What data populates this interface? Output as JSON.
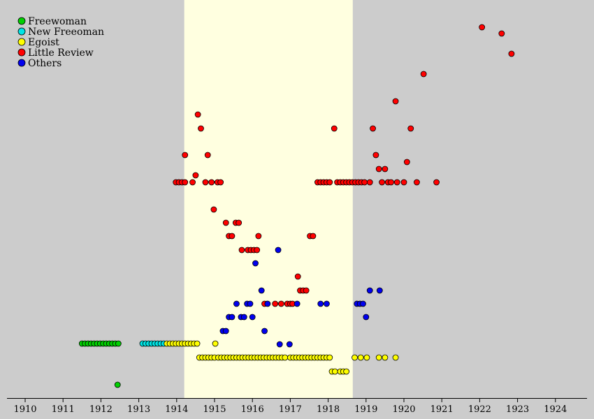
{
  "chart_data": {
    "type": "scatter",
    "title": "",
    "xlabel": "",
    "ylabel": "",
    "xlim": [
      1909.6,
      1925.0
    ],
    "xticks": [
      "1910",
      "1911",
      "1912",
      "1913",
      "1914",
      "1915",
      "1916",
      "1917",
      "1918",
      "1919",
      "1920",
      "1921",
      "1922",
      "1923",
      "1924"
    ],
    "highlight_range": [
      1914.2,
      1918.65
    ],
    "grid": false,
    "legend_placement": "top-left",
    "series": [
      {
        "name": "Freewoman",
        "color": "#00d000",
        "points": [
          [
            1911.5,
            492
          ],
          [
            1911.58,
            492
          ],
          [
            1911.66,
            492
          ],
          [
            1911.74,
            492
          ],
          [
            1911.82,
            492
          ],
          [
            1911.9,
            492
          ],
          [
            1911.98,
            492
          ],
          [
            1912.06,
            492
          ],
          [
            1912.14,
            492
          ],
          [
            1912.22,
            492
          ],
          [
            1912.3,
            492
          ],
          [
            1912.38,
            492
          ],
          [
            1912.46,
            492
          ],
          [
            1912.44,
            551
          ]
        ]
      },
      {
        "name": "New Freeoman",
        "color": "#00e5e5",
        "points": [
          [
            1913.1,
            492
          ],
          [
            1913.18,
            492
          ],
          [
            1913.26,
            492
          ],
          [
            1913.34,
            492
          ],
          [
            1913.42,
            492
          ],
          [
            1913.5,
            492
          ],
          [
            1913.58,
            492
          ],
          [
            1913.66,
            492
          ]
        ]
      },
      {
        "name": "Egoist",
        "color": "#ffff00",
        "points": [
          [
            1913.74,
            492
          ],
          [
            1913.82,
            492
          ],
          [
            1913.9,
            492
          ],
          [
            1913.98,
            492
          ],
          [
            1914.06,
            492
          ],
          [
            1914.14,
            492
          ],
          [
            1914.22,
            492
          ],
          [
            1914.3,
            492
          ],
          [
            1914.38,
            492
          ],
          [
            1914.46,
            492
          ],
          [
            1914.54,
            492
          ],
          [
            1915.02,
            492
          ],
          [
            1914.6,
            512
          ],
          [
            1914.68,
            512
          ],
          [
            1914.76,
            512
          ],
          [
            1914.84,
            512
          ],
          [
            1914.92,
            512
          ],
          [
            1915.0,
            512
          ],
          [
            1915.1,
            512
          ],
          [
            1915.18,
            512
          ],
          [
            1915.26,
            512
          ],
          [
            1915.34,
            512
          ],
          [
            1915.42,
            512
          ],
          [
            1915.5,
            512
          ],
          [
            1915.58,
            512
          ],
          [
            1915.66,
            512
          ],
          [
            1915.74,
            512
          ],
          [
            1915.82,
            512
          ],
          [
            1915.9,
            512
          ],
          [
            1915.98,
            512
          ],
          [
            1916.06,
            512
          ],
          [
            1916.14,
            512
          ],
          [
            1916.22,
            512
          ],
          [
            1916.3,
            512
          ],
          [
            1916.38,
            512
          ],
          [
            1916.46,
            512
          ],
          [
            1916.54,
            512
          ],
          [
            1916.62,
            512
          ],
          [
            1916.7,
            512
          ],
          [
            1916.78,
            512
          ],
          [
            1916.86,
            512
          ],
          [
            1917.0,
            512
          ],
          [
            1917.08,
            512
          ],
          [
            1917.16,
            512
          ],
          [
            1917.24,
            512
          ],
          [
            1917.32,
            512
          ],
          [
            1917.4,
            512
          ],
          [
            1917.48,
            512
          ],
          [
            1917.56,
            512
          ],
          [
            1917.64,
            512
          ],
          [
            1917.72,
            512
          ],
          [
            1917.8,
            512
          ],
          [
            1917.88,
            512
          ],
          [
            1917.96,
            512
          ],
          [
            1918.04,
            512
          ],
          [
            1918.7,
            512
          ],
          [
            1918.86,
            512
          ],
          [
            1919.02,
            512
          ],
          [
            1919.34,
            512
          ],
          [
            1919.5,
            512
          ],
          [
            1919.78,
            512
          ],
          [
            1918.1,
            532
          ],
          [
            1918.18,
            532
          ],
          [
            1918.32,
            532
          ],
          [
            1918.4,
            532
          ],
          [
            1918.48,
            532
          ]
        ]
      },
      {
        "name": "Little Review",
        "color": "#ff0000",
        "points": [
          [
            1922.06,
            39
          ],
          [
            1922.58,
            48
          ],
          [
            1922.84,
            77
          ],
          [
            1920.52,
            106
          ],
          [
            1919.78,
            145
          ],
          [
            1914.56,
            164
          ],
          [
            1914.64,
            184
          ],
          [
            1918.16,
            184
          ],
          [
            1919.18,
            184
          ],
          [
            1920.18,
            184
          ],
          [
            1914.22,
            222
          ],
          [
            1914.82,
            222
          ],
          [
            1919.26,
            222
          ],
          [
            1920.08,
            232
          ],
          [
            1919.34,
            242
          ],
          [
            1919.5,
            242
          ],
          [
            1914.5,
            251
          ],
          [
            1913.98,
            261
          ],
          [
            1914.06,
            261
          ],
          [
            1914.14,
            261
          ],
          [
            1914.22,
            261
          ],
          [
            1914.42,
            261
          ],
          [
            1914.76,
            261
          ],
          [
            1914.92,
            261
          ],
          [
            1915.08,
            261
          ],
          [
            1915.16,
            261
          ],
          [
            1917.72,
            261
          ],
          [
            1917.8,
            261
          ],
          [
            1917.88,
            261
          ],
          [
            1917.96,
            261
          ],
          [
            1918.04,
            261
          ],
          [
            1918.24,
            261
          ],
          [
            1918.32,
            261
          ],
          [
            1918.4,
            261
          ],
          [
            1918.48,
            261
          ],
          [
            1918.56,
            261
          ],
          [
            1918.64,
            261
          ],
          [
            1918.72,
            261
          ],
          [
            1918.8,
            261
          ],
          [
            1918.88,
            261
          ],
          [
            1918.96,
            261
          ],
          [
            1919.1,
            261
          ],
          [
            1919.42,
            261
          ],
          [
            1919.58,
            261
          ],
          [
            1919.66,
            261
          ],
          [
            1919.82,
            261
          ],
          [
            1920.0,
            261
          ],
          [
            1920.34,
            261
          ],
          [
            1920.86,
            261
          ],
          [
            1914.98,
            300
          ],
          [
            1915.3,
            319
          ],
          [
            1915.56,
            319
          ],
          [
            1915.64,
            319
          ],
          [
            1915.38,
            338
          ],
          [
            1915.46,
            338
          ],
          [
            1916.16,
            338
          ],
          [
            1917.52,
            338
          ],
          [
            1917.6,
            338
          ],
          [
            1915.72,
            358
          ],
          [
            1915.88,
            358
          ],
          [
            1915.96,
            358
          ],
          [
            1916.04,
            358
          ],
          [
            1916.12,
            358
          ],
          [
            1917.2,
            396
          ],
          [
            1917.26,
            416
          ],
          [
            1917.34,
            416
          ],
          [
            1917.42,
            416
          ],
          [
            1916.32,
            435
          ],
          [
            1916.6,
            435
          ],
          [
            1916.76,
            435
          ],
          [
            1916.92,
            435
          ],
          [
            1917.0,
            435
          ],
          [
            1917.06,
            435
          ]
        ]
      },
      {
        "name": "Others",
        "color": "#0000ee",
        "points": [
          [
            1916.68,
            358
          ],
          [
            1916.08,
            377
          ],
          [
            1916.24,
            416
          ],
          [
            1919.1,
            416
          ],
          [
            1919.36,
            416
          ],
          [
            1915.58,
            435
          ],
          [
            1915.86,
            435
          ],
          [
            1915.94,
            435
          ],
          [
            1916.4,
            435
          ],
          [
            1917.18,
            435
          ],
          [
            1917.8,
            435
          ],
          [
            1917.96,
            435
          ],
          [
            1918.76,
            435
          ],
          [
            1918.84,
            435
          ],
          [
            1918.92,
            435
          ],
          [
            1915.38,
            454
          ],
          [
            1915.46,
            454
          ],
          [
            1915.7,
            454
          ],
          [
            1915.78,
            454
          ],
          [
            1916.0,
            454
          ],
          [
            1919.0,
            454
          ],
          [
            1915.22,
            474
          ],
          [
            1915.3,
            474
          ],
          [
            1916.32,
            474
          ],
          [
            1916.72,
            493
          ],
          [
            1916.98,
            493
          ]
        ]
      }
    ]
  }
}
